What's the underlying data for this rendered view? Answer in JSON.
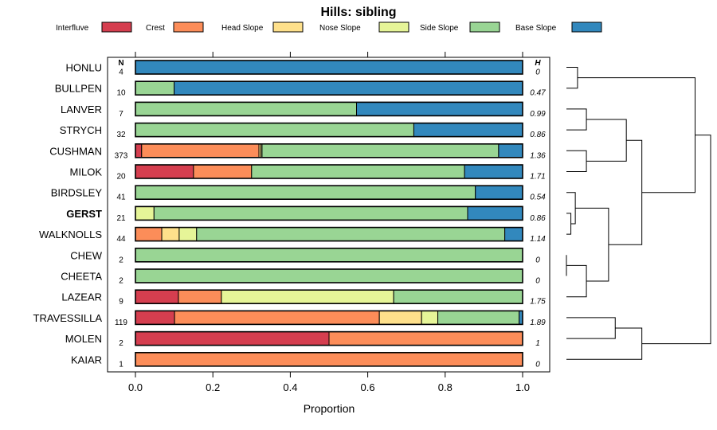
{
  "chart_data": {
    "type": "stacked-bar",
    "title": "Hills: sibling",
    "xlabel": "Proportion",
    "xlim": [
      0,
      1
    ],
    "xticks": [
      "0.0",
      "0.2",
      "0.4",
      "0.6",
      "0.8",
      "1.0"
    ],
    "n_header": "N",
    "h_header": "H",
    "legend": [
      {
        "name": "Interfluve",
        "color": "#D53E4F"
      },
      {
        "name": "Crest",
        "color": "#FC8D59"
      },
      {
        "name": "Head Slope",
        "color": "#FEE08B"
      },
      {
        "name": "Nose Slope",
        "color": "#E6F598"
      },
      {
        "name": "Side Slope",
        "color": "#99D594"
      },
      {
        "name": "Base Slope",
        "color": "#3288BD"
      }
    ],
    "rows": [
      {
        "label": "HONLU",
        "n": "4",
        "h": "0",
        "bold": false,
        "values": [
          0,
          0,
          0,
          0,
          0,
          1.0
        ]
      },
      {
        "label": "BULLPEN",
        "n": "10",
        "h": "0.47",
        "bold": false,
        "values": [
          0,
          0,
          0,
          0,
          0.1,
          0.9
        ]
      },
      {
        "label": "LANVER",
        "n": "7",
        "h": "0.99",
        "bold": false,
        "values": [
          0,
          0,
          0,
          0,
          0.571,
          0.429
        ]
      },
      {
        "label": "STRYCH",
        "n": "32",
        "h": "0.86",
        "bold": false,
        "values": [
          0,
          0,
          0,
          0,
          0.719,
          0.281
        ]
      },
      {
        "label": "CUSHMAN",
        "n": "373",
        "h": "1.36",
        "bold": false,
        "values": [
          0.016,
          0.303,
          0.005,
          0.003,
          0.611,
          0.062
        ]
      },
      {
        "label": "MILOK",
        "n": "20",
        "h": "1.71",
        "bold": false,
        "values": [
          0.15,
          0.15,
          0,
          0,
          0.55,
          0.15
        ]
      },
      {
        "label": "BIRDSLEY",
        "n": "41",
        "h": "0.54",
        "bold": false,
        "values": [
          0,
          0,
          0,
          0,
          0.878,
          0.122
        ]
      },
      {
        "label": "GERST",
        "n": "21",
        "h": "0.86",
        "bold": true,
        "values": [
          0,
          0,
          0,
          0.048,
          0.81,
          0.142
        ]
      },
      {
        "label": "WALKNOLLS",
        "n": "44",
        "h": "1.14",
        "bold": false,
        "values": [
          0,
          0.068,
          0.045,
          0.045,
          0.796,
          0.046
        ]
      },
      {
        "label": "CHEW",
        "n": "2",
        "h": "0",
        "bold": false,
        "values": [
          0,
          0,
          0,
          0,
          1.0,
          0
        ]
      },
      {
        "label": "CHEETA",
        "n": "2",
        "h": "0",
        "bold": false,
        "values": [
          0,
          0,
          0,
          0,
          1.0,
          0
        ]
      },
      {
        "label": "LAZEAR",
        "n": "9",
        "h": "1.75",
        "bold": false,
        "values": [
          0.111,
          0.111,
          0,
          0.445,
          0.333,
          0
        ]
      },
      {
        "label": "TRAVESSILLA",
        "n": "119",
        "h": "1.89",
        "bold": false,
        "values": [
          0.101,
          0.529,
          0.109,
          0.042,
          0.21,
          0.009
        ]
      },
      {
        "label": "MOLEN",
        "n": "2",
        "h": "1",
        "bold": false,
        "values": [
          0.5,
          0.5,
          0,
          0,
          0,
          0
        ]
      },
      {
        "label": "KAIAR",
        "n": "1",
        "h": "0",
        "bold": false,
        "values": [
          0,
          1.0,
          0,
          0,
          0,
          0
        ]
      }
    ],
    "dendrogram": [
      {
        "a": "HONLU",
        "b": "BULLPEN",
        "height": 0.05
      },
      {
        "a": "LANVER",
        "b": "STRYCH",
        "height": 0.09
      },
      {
        "a": "CUSHMAN",
        "b": "MILOK",
        "height": 0.09
      },
      {
        "a": "LANVER",
        "b": "CUSHMAN",
        "height": 0.27
      },
      {
        "a": "GERST",
        "b": "WALKNOLLS",
        "height": 0.02
      },
      {
        "a": "BIRDSLEY",
        "b": "GERST",
        "height": 0.04
      },
      {
        "a": "CHEW",
        "b": "CHEETA",
        "height": 0.0
      },
      {
        "a": "CHEW",
        "b": "LAZEAR",
        "height": 0.09
      },
      {
        "a": "BIRDSLEY",
        "b": "CHEW",
        "height": 0.19
      },
      {
        "a": "LANVER",
        "b": "BIRDSLEY",
        "height": 0.34
      },
      {
        "a": "HONLU",
        "b": "LANVER",
        "height": 0.58
      },
      {
        "a": "TRAVESSILLA",
        "b": "MOLEN",
        "height": 0.22
      },
      {
        "a": "TRAVESSILLA",
        "b": "KAIAR",
        "height": 0.34
      },
      {
        "a": "HONLU",
        "b": "TRAVESSILLA",
        "height": 0.65
      }
    ],
    "dendrogram_max_height": 0.65
  }
}
